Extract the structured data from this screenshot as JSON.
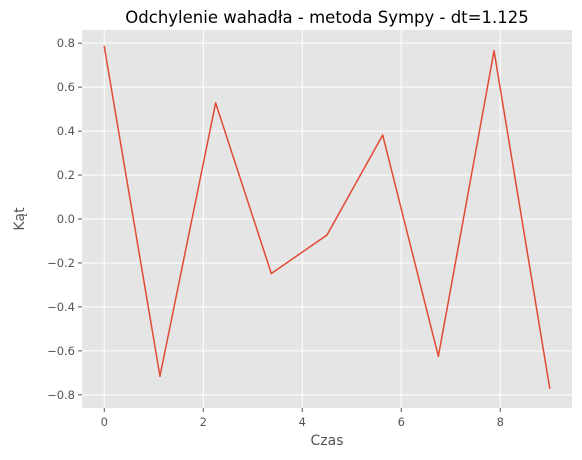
{
  "chart_data": {
    "type": "line",
    "title": "Odchylenie wahadła - metoda Sympy - dt=1.125",
    "xlabel": "Czas",
    "ylabel": "Kąt",
    "xlim": [
      -0.45,
      9.45
    ],
    "ylim": [
      -0.86,
      0.86
    ],
    "xticks": [
      0,
      2,
      4,
      6,
      8
    ],
    "yticks": [
      -0.8,
      -0.6,
      -0.4,
      -0.2,
      0.0,
      0.2,
      0.4,
      0.6,
      0.8
    ],
    "ytick_labels": [
      "−0.8",
      "−0.6",
      "−0.4",
      "−0.2",
      "0.0",
      "0.2",
      "0.4",
      "0.6",
      "0.8"
    ],
    "grid": true,
    "series": [
      {
        "color": "#e24a33",
        "x": [
          0,
          1.125,
          2.25,
          3.375,
          4.5,
          5.625,
          6.75,
          7.875,
          9.0
        ],
        "y": [
          0.785,
          -0.715,
          0.528,
          -0.248,
          -0.073,
          0.382,
          -0.625,
          0.765,
          -0.77
        ]
      }
    ]
  }
}
